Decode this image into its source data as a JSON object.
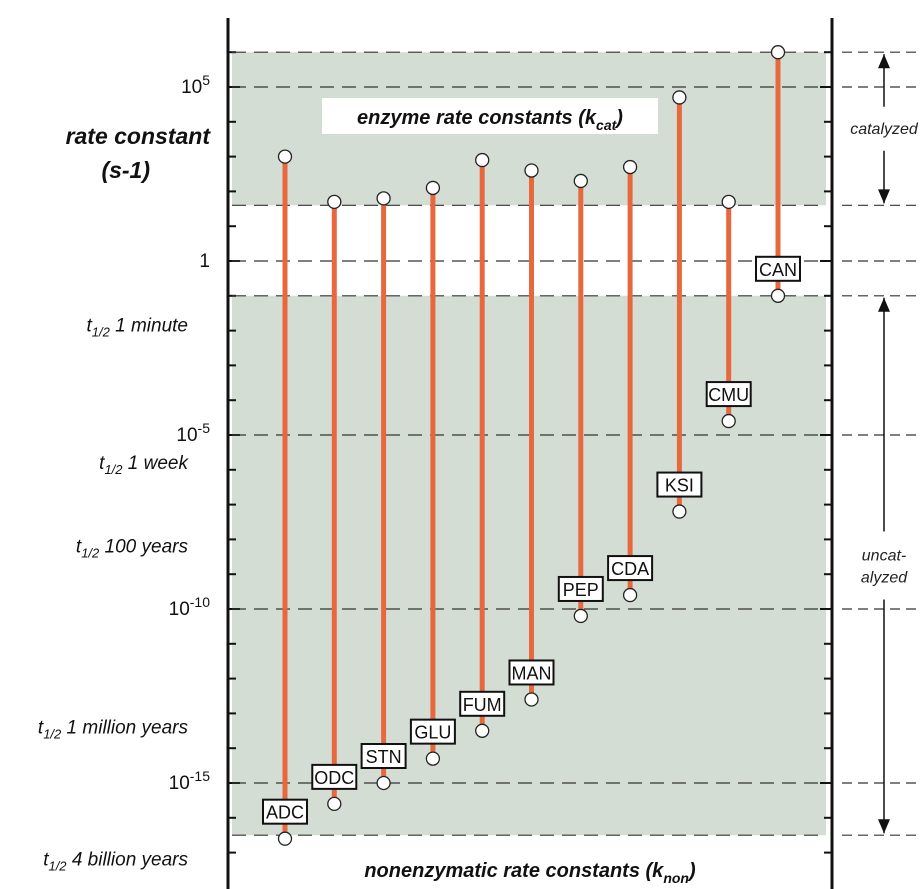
{
  "chart_data": {
    "type": "range",
    "title": "",
    "ylabel": [
      "rate constant",
      "(s-1)"
    ],
    "y_scale": "log10",
    "ylim_log10": [
      -17.5,
      6.5
    ],
    "y_ticks": [
      {
        "log10": 5,
        "label": "10",
        "sup": "5"
      },
      {
        "log10": 0,
        "label": "1",
        "sup": ""
      },
      {
        "log10": -5,
        "label": "10",
        "sup": "-5"
      },
      {
        "log10": -10,
        "label": "10",
        "sup": "-10"
      },
      {
        "log10": -15,
        "label": "10",
        "sup": "-15"
      }
    ],
    "half_life_labels": [
      {
        "log10": -1.85,
        "prefix": "t",
        "sub": "1/2",
        "text": " 1 minute"
      },
      {
        "log10": -5.8,
        "prefix": "t",
        "sub": "1/2",
        "text": " 1 week"
      },
      {
        "log10": -8.2,
        "prefix": "t",
        "sub": "1/2",
        "text": " 100 years"
      },
      {
        "log10": -13.4,
        "prefix": "t",
        "sub": "1/2",
        "text": " 1 million years"
      },
      {
        "log10": -17.2,
        "prefix": "t",
        "sub": "1/2",
        "text": " 4 billion years"
      }
    ],
    "bands": [
      {
        "from_log10": 1.6,
        "to_log10": 6.0,
        "color": "#d4ddd4"
      },
      {
        "from_log10": -1.0,
        "to_log10": -16.5,
        "color": "#d4ddd4"
      }
    ],
    "band_titles": {
      "kcat": {
        "text": "enzyme rate constants (k",
        "sub": "cat",
        "close": ")"
      },
      "knon": {
        "text": "nonenzymatic rate constants (k",
        "sub": "non",
        "close": ")"
      }
    },
    "dashed_lines_log10": [
      6.0,
      5.0,
      1.6,
      0.0,
      -1.0,
      -5.0,
      -10.0,
      -15.0,
      -16.5
    ],
    "series": [
      {
        "name": "ADC",
        "kcat_log10": 3.0,
        "knon_log10": -16.6
      },
      {
        "name": "ODC",
        "kcat_log10": 1.7,
        "knon_log10": -15.6
      },
      {
        "name": "STN",
        "kcat_log10": 1.8,
        "knon_log10": -15.0
      },
      {
        "name": "GLU",
        "kcat_log10": 2.1,
        "knon_log10": -14.3
      },
      {
        "name": "FUM",
        "kcat_log10": 2.9,
        "knon_log10": -13.5
      },
      {
        "name": "MAN",
        "kcat_log10": 2.6,
        "knon_log10": -12.6
      },
      {
        "name": "PEP",
        "kcat_log10": 2.3,
        "knon_log10": -10.2
      },
      {
        "name": "CDA",
        "kcat_log10": 2.7,
        "knon_log10": -9.6
      },
      {
        "name": "KSI",
        "kcat_log10": 4.7,
        "knon_log10": -7.2
      },
      {
        "name": "CMU",
        "kcat_log10": 1.7,
        "knon_log10": -4.6
      },
      {
        "name": "CAN",
        "kcat_log10": 6.0,
        "knon_log10": -1.0
      }
    ],
    "side_annotations": [
      {
        "text": "catalyzed",
        "from_log10": 6.0,
        "to_log10": 1.6
      },
      {
        "text": "uncat-\nalyzed",
        "from_log10": -1.0,
        "to_log10": -16.5
      }
    ],
    "colors": {
      "bar": "#e8683e",
      "band": "#d4ddd4",
      "frame": "#111111",
      "dash": "#333333"
    }
  }
}
